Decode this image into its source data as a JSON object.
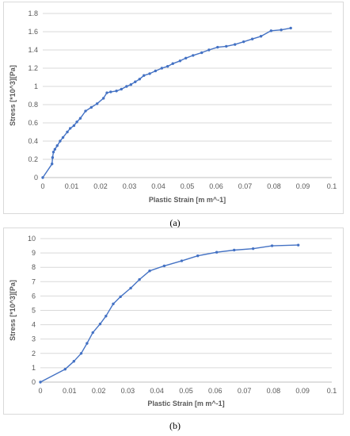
{
  "captions": {
    "a": "(a)",
    "b": "(b)"
  },
  "chart_data": [
    {
      "type": "line",
      "panel": "a",
      "title": "",
      "xlabel": "Plastic Strain [m m^-1]",
      "ylabel": "Stress [*10^3][Pa]",
      "xlim": [
        0,
        0.1
      ],
      "ylim": [
        0,
        1.8
      ],
      "x_ticks": [
        "0",
        "0.01",
        "0.02",
        "0.03",
        "0.04",
        "0.05",
        "0.06",
        "0.07",
        "0.08",
        "0.09",
        "0.1"
      ],
      "y_ticks": [
        "0",
        "0.2",
        "0.4",
        "0.6",
        "0.8",
        "1",
        "1.2",
        "1.4",
        "1.6",
        "1.8"
      ],
      "grid": "horizontal",
      "color": "#4472c4",
      "series": [
        {
          "x": [
            0,
            0.0032,
            0.0034,
            0.0037,
            0.0042,
            0.005,
            0.006,
            0.007,
            0.0085,
            0.0095,
            0.0108,
            0.0118,
            0.013,
            0.0148,
            0.0168,
            0.0188,
            0.021,
            0.0222,
            0.0235,
            0.0255,
            0.0272,
            0.029,
            0.0305,
            0.032,
            0.0335,
            0.035,
            0.037,
            0.039,
            0.0412,
            0.0432,
            0.045,
            0.0475,
            0.0495,
            0.052,
            0.055,
            0.0575,
            0.0605,
            0.0635,
            0.0665,
            0.0695,
            0.0725,
            0.0755,
            0.079,
            0.0825,
            0.0858
          ],
          "y": [
            0,
            0.15,
            0.22,
            0.28,
            0.31,
            0.35,
            0.4,
            0.44,
            0.5,
            0.54,
            0.57,
            0.61,
            0.65,
            0.73,
            0.77,
            0.81,
            0.87,
            0.93,
            0.94,
            0.95,
            0.97,
            1.0,
            1.02,
            1.05,
            1.08,
            1.12,
            1.14,
            1.17,
            1.2,
            1.22,
            1.25,
            1.28,
            1.31,
            1.34,
            1.37,
            1.4,
            1.43,
            1.44,
            1.46,
            1.49,
            1.52,
            1.55,
            1.61,
            1.62,
            1.64
          ]
        }
      ]
    },
    {
      "type": "line",
      "panel": "b",
      "title": "",
      "xlabel": "Plastic Strain [m m^-1]",
      "ylabel": "Stress [*10^3][Pa]",
      "xlim": [
        0,
        0.1
      ],
      "ylim": [
        0,
        10
      ],
      "x_ticks": [
        "0",
        "0.01",
        "0.02",
        "0.03",
        "0.04",
        "0.05",
        "0.06",
        "0.07",
        "0.08",
        "0.09",
        "0.1"
      ],
      "y_ticks": [
        "0",
        "1",
        "2",
        "3",
        "4",
        "5",
        "6",
        "7",
        "8",
        "9",
        "10"
      ],
      "grid": "horizontal",
      "color": "#4472c4",
      "series": [
        {
          "x": [
            0,
            0.0085,
            0.0115,
            0.014,
            0.016,
            0.018,
            0.0205,
            0.0225,
            0.025,
            0.0275,
            0.031,
            0.034,
            0.0375,
            0.0425,
            0.0485,
            0.054,
            0.0605,
            0.0665,
            0.073,
            0.0795,
            0.0885
          ],
          "y": [
            0,
            0.9,
            1.45,
            2.0,
            2.7,
            3.45,
            4.05,
            4.6,
            5.45,
            5.95,
            6.55,
            7.15,
            7.75,
            8.1,
            8.45,
            8.8,
            9.05,
            9.2,
            9.3,
            9.5,
            9.55
          ]
        }
      ]
    }
  ]
}
